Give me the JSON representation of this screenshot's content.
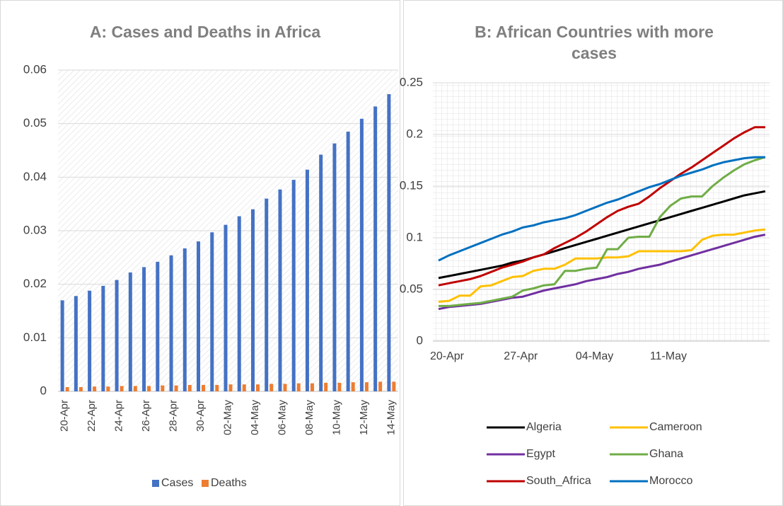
{
  "chart_data": [
    {
      "type": "bar",
      "title": "A: Cases and Deaths in Africa",
      "categories": [
        "20-Apr",
        null,
        "22-Apr",
        null,
        "24-Apr",
        null,
        "26-Apr",
        null,
        "28-Apr",
        null,
        "30-Apr",
        null,
        "02-May",
        null,
        "04-May",
        null,
        "06-May",
        null,
        "08-May",
        null,
        "10-May",
        null,
        "12-May",
        null,
        "14-May"
      ],
      "series": [
        {
          "name": "Cases",
          "color": "#4472c4",
          "values": [
            0.017,
            0.0178,
            0.0188,
            0.0197,
            0.0208,
            0.0222,
            0.0232,
            0.0242,
            0.0254,
            0.0267,
            0.028,
            0.0297,
            0.0311,
            0.0327,
            0.034,
            0.036,
            0.0377,
            0.0395,
            0.0414,
            0.0442,
            0.0463,
            0.0485,
            0.0509,
            0.0532,
            0.0555
          ]
        },
        {
          "name": "Deaths",
          "color": "#ed7d31",
          "values": [
            0.0008,
            0.0008,
            0.0009,
            0.0009,
            0.001,
            0.001,
            0.001,
            0.0011,
            0.0011,
            0.0012,
            0.0012,
            0.0012,
            0.0013,
            0.0013,
            0.0013,
            0.0014,
            0.0014,
            0.0015,
            0.0015,
            0.0016,
            0.0016,
            0.0017,
            0.0017,
            0.0018,
            0.0018
          ]
        }
      ],
      "ylim": [
        0,
        0.06
      ],
      "yticks": [
        0,
        0.01,
        0.02,
        0.03,
        0.04,
        0.05,
        0.06
      ],
      "grid": true,
      "legend": "bottom"
    },
    {
      "type": "line",
      "title": "B: African Countries with more cases",
      "categories": [
        "20-Apr",
        null,
        null,
        null,
        null,
        null,
        null,
        "27-Apr",
        null,
        null,
        null,
        null,
        null,
        null,
        "04-May",
        null,
        null,
        null,
        null,
        null,
        null,
        "11-May",
        null,
        null,
        null,
        null,
        null,
        null,
        null,
        null,
        null,
        null
      ],
      "series": [
        {
          "name": "Algeria",
          "color": "#000000",
          "values": [
            0.061,
            0.063,
            0.065,
            0.067,
            0.069,
            0.071,
            0.073,
            0.076,
            0.078,
            0.081,
            0.084,
            0.087,
            0.09,
            0.093,
            0.096,
            0.099,
            0.102,
            0.105,
            0.108,
            0.111,
            0.114,
            0.117,
            0.12,
            0.123,
            0.126,
            0.129,
            0.132,
            0.135,
            0.138,
            0.141,
            0.143,
            0.145
          ]
        },
        {
          "name": "Cameroon",
          "color": "#ffc000",
          "values": [
            0.038,
            0.039,
            0.044,
            0.044,
            0.053,
            0.054,
            0.058,
            0.062,
            0.063,
            0.068,
            0.07,
            0.07,
            0.074,
            0.08,
            0.08,
            0.08,
            0.081,
            0.081,
            0.082,
            0.087,
            0.087,
            0.087,
            0.087,
            0.087,
            0.088,
            0.098,
            0.102,
            0.103,
            0.103,
            0.105,
            0.107,
            0.108
          ]
        },
        {
          "name": "Egypt",
          "color": "#7030a0",
          "values": [
            0.031,
            0.033,
            0.034,
            0.035,
            0.036,
            0.038,
            0.04,
            0.042,
            0.043,
            0.046,
            0.049,
            0.051,
            0.053,
            0.055,
            0.058,
            0.06,
            0.062,
            0.065,
            0.067,
            0.07,
            0.072,
            0.074,
            0.077,
            0.08,
            0.083,
            0.086,
            0.089,
            0.092,
            0.095,
            0.098,
            0.101,
            0.103
          ]
        },
        {
          "name": "Ghana",
          "color": "#70ad47",
          "values": [
            0.034,
            0.034,
            0.035,
            0.036,
            0.037,
            0.039,
            0.041,
            0.043,
            0.049,
            0.051,
            0.054,
            0.055,
            0.068,
            0.068,
            0.07,
            0.071,
            0.089,
            0.089,
            0.1,
            0.101,
            0.101,
            0.12,
            0.131,
            0.138,
            0.14,
            0.14,
            0.15,
            0.158,
            0.165,
            0.171,
            0.175,
            0.178
          ]
        },
        {
          "name": "South_Africa",
          "color": "#c00000",
          "values": [
            0.054,
            0.056,
            0.058,
            0.06,
            0.063,
            0.067,
            0.071,
            0.074,
            0.077,
            0.081,
            0.084,
            0.09,
            0.095,
            0.1,
            0.106,
            0.113,
            0.12,
            0.126,
            0.13,
            0.133,
            0.14,
            0.148,
            0.155,
            0.162,
            0.168,
            0.175,
            0.182,
            0.189,
            0.196,
            0.202,
            0.207,
            0.207
          ]
        },
        {
          "name": "Morocco",
          "color": "#0070c0",
          "values": [
            0.078,
            0.083,
            0.087,
            0.091,
            0.095,
            0.099,
            0.103,
            0.106,
            0.11,
            0.112,
            0.115,
            0.117,
            0.119,
            0.122,
            0.126,
            0.13,
            0.134,
            0.137,
            0.141,
            0.145,
            0.149,
            0.152,
            0.156,
            0.16,
            0.163,
            0.166,
            0.17,
            0.173,
            0.175,
            0.177,
            0.178,
            0.178
          ]
        }
      ],
      "ylim": [
        0,
        0.25
      ],
      "yticks": [
        0,
        0.05,
        0.1,
        0.15,
        0.2,
        0.25
      ],
      "grid": true,
      "legend": "bottom"
    }
  ]
}
